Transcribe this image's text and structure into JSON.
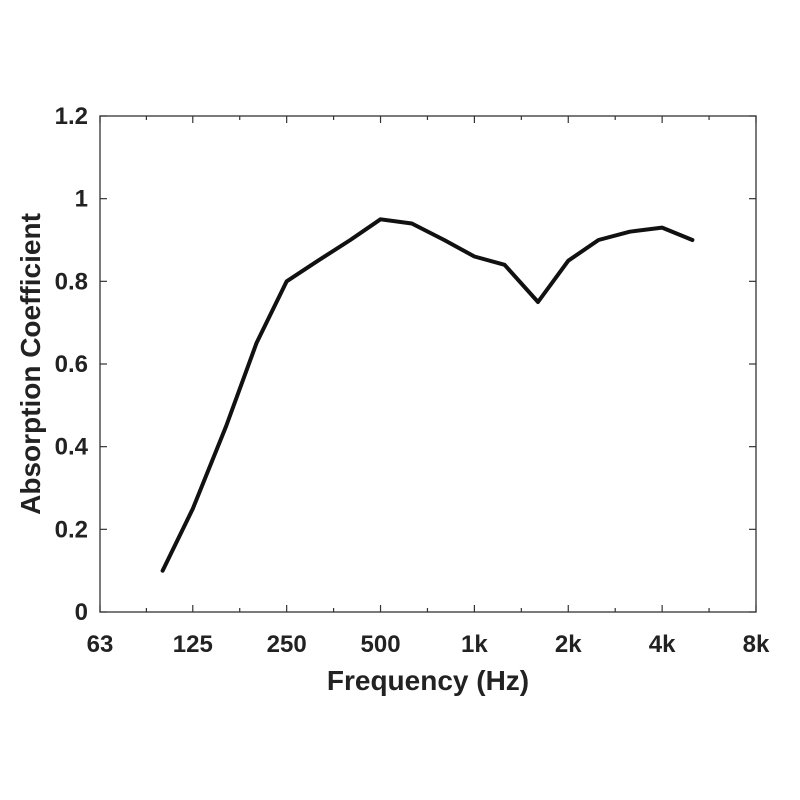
{
  "chart_data": {
    "type": "line",
    "xlabel": "Frequency (Hz)",
    "ylabel": "Absorption Coefficient",
    "x_scale": "log2",
    "xlim": [
      63,
      8000
    ],
    "ylim": [
      0,
      1.2
    ],
    "x_ticks": [
      {
        "value": 63,
        "label": "63"
      },
      {
        "value": 125,
        "label": "125"
      },
      {
        "value": 250,
        "label": "250"
      },
      {
        "value": 500,
        "label": "500"
      },
      {
        "value": 1000,
        "label": "1k"
      },
      {
        "value": 2000,
        "label": "2k"
      },
      {
        "value": 4000,
        "label": "4k"
      },
      {
        "value": 8000,
        "label": "8k"
      }
    ],
    "y_ticks": [
      {
        "value": 0,
        "label": "0"
      },
      {
        "value": 0.2,
        "label": "0.2"
      },
      {
        "value": 0.4,
        "label": "0.4"
      },
      {
        "value": 0.6,
        "label": "0.6"
      },
      {
        "value": 0.8,
        "label": "0.8"
      },
      {
        "value": 1.0,
        "label": "1"
      },
      {
        "value": 1.2,
        "label": "1.2"
      }
    ],
    "grid": false,
    "legend": "none",
    "series": [
      {
        "color": "#111111",
        "x": [
          100,
          125,
          160,
          200,
          250,
          315,
          400,
          500,
          630,
          800,
          1000,
          1250,
          1600,
          2000,
          2500,
          3150,
          4000,
          5000
        ],
        "y": [
          0.1,
          0.25,
          0.45,
          0.65,
          0.8,
          0.85,
          0.9,
          0.95,
          0.94,
          0.9,
          0.86,
          0.84,
          0.75,
          0.85,
          0.9,
          0.92,
          0.93,
          0.9
        ]
      }
    ]
  }
}
